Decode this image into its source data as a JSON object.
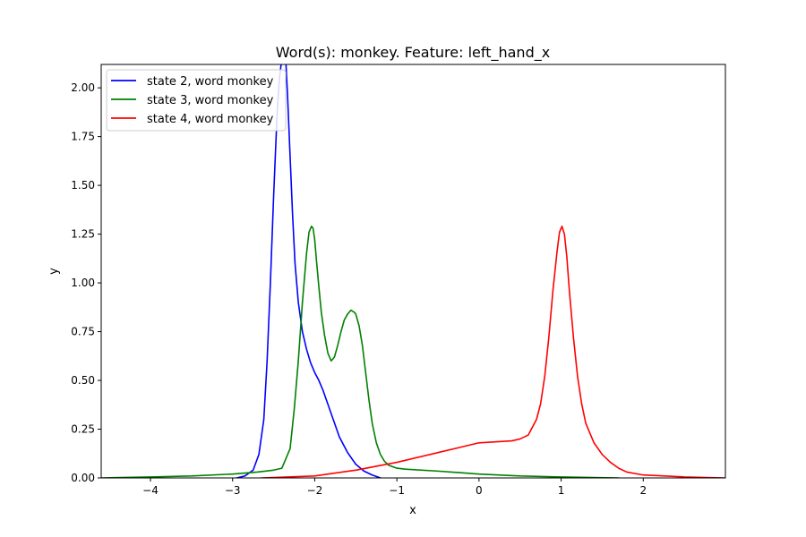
{
  "chart_data": {
    "type": "line",
    "title": "Word(s): monkey. Feature: left_hand_x",
    "xlabel": "x",
    "ylabel": "y",
    "xlim": [
      -4.6,
      3.0
    ],
    "ylim": [
      0,
      2.12
    ],
    "xticks": [
      -4,
      -3,
      -2,
      -1,
      0,
      1,
      2
    ],
    "xtick_labels": [
      "−4",
      "−3",
      "−2",
      "−1",
      "0",
      "1",
      "2"
    ],
    "yticks": [
      0,
      0.25,
      0.5,
      0.75,
      1.0,
      1.25,
      1.5,
      1.75,
      2.0
    ],
    "ytick_labels": [
      "0.00",
      "0.25",
      "0.50",
      "0.75",
      "1.00",
      "1.25",
      "1.50",
      "1.75",
      "2.00"
    ],
    "grid": false,
    "legend_position": "top-left",
    "series": [
      {
        "name": "state 2, word monkey",
        "color": "#0000ff",
        "x": [
          -2.95,
          -2.85,
          -2.75,
          -2.68,
          -2.62,
          -2.58,
          -2.54,
          -2.5,
          -2.46,
          -2.43,
          -2.4,
          -2.38,
          -2.35,
          -2.33,
          -2.3,
          -2.27,
          -2.24,
          -2.2,
          -2.15,
          -2.1,
          -2.05,
          -2.0,
          -1.95,
          -1.9,
          -1.85,
          -1.8,
          -1.75,
          -1.7,
          -1.6,
          -1.5,
          -1.4,
          -1.3,
          -1.2
        ],
        "y": [
          0.0,
          0.01,
          0.04,
          0.12,
          0.3,
          0.6,
          1.0,
          1.45,
          1.85,
          2.05,
          2.15,
          2.15,
          2.12,
          1.95,
          1.65,
          1.35,
          1.1,
          0.9,
          0.75,
          0.66,
          0.59,
          0.54,
          0.5,
          0.45,
          0.39,
          0.33,
          0.27,
          0.21,
          0.13,
          0.07,
          0.035,
          0.015,
          0.0
        ]
      },
      {
        "name": "state 3, word monkey",
        "color": "#008000",
        "x": [
          -4.6,
          -4.0,
          -3.5,
          -3.0,
          -2.7,
          -2.5,
          -2.4,
          -2.3,
          -2.25,
          -2.2,
          -2.15,
          -2.1,
          -2.07,
          -2.04,
          -2.02,
          -2.0,
          -1.98,
          -1.95,
          -1.92,
          -1.88,
          -1.84,
          -1.8,
          -1.76,
          -1.72,
          -1.68,
          -1.64,
          -1.6,
          -1.56,
          -1.52,
          -1.5,
          -1.46,
          -1.42,
          -1.38,
          -1.34,
          -1.3,
          -1.25,
          -1.2,
          -1.15,
          -1.1,
          -1.0,
          -0.9,
          -0.5,
          0.0,
          0.5,
          1.0,
          1.7
        ],
        "y": [
          0.0,
          0.005,
          0.01,
          0.02,
          0.03,
          0.04,
          0.05,
          0.15,
          0.35,
          0.6,
          0.9,
          1.15,
          1.26,
          1.29,
          1.28,
          1.22,
          1.12,
          0.98,
          0.85,
          0.73,
          0.64,
          0.6,
          0.62,
          0.68,
          0.75,
          0.81,
          0.84,
          0.86,
          0.85,
          0.84,
          0.78,
          0.68,
          0.54,
          0.4,
          0.28,
          0.18,
          0.12,
          0.085,
          0.065,
          0.05,
          0.045,
          0.035,
          0.02,
          0.01,
          0.005,
          0.0
        ]
      },
      {
        "name": "state 4, word monkey",
        "color": "#ff0000",
        "x": [
          -2.65,
          -2.0,
          -1.5,
          -1.0,
          -0.5,
          -0.2,
          0.0,
          0.2,
          0.4,
          0.5,
          0.6,
          0.7,
          0.75,
          0.8,
          0.85,
          0.9,
          0.95,
          0.98,
          1.01,
          1.04,
          1.07,
          1.1,
          1.15,
          1.2,
          1.25,
          1.3,
          1.4,
          1.5,
          1.6,
          1.7,
          1.8,
          2.0,
          2.5,
          3.0
        ],
        "y": [
          0.0,
          0.01,
          0.04,
          0.08,
          0.13,
          0.16,
          0.18,
          0.185,
          0.19,
          0.2,
          0.22,
          0.3,
          0.38,
          0.52,
          0.72,
          0.96,
          1.16,
          1.26,
          1.29,
          1.25,
          1.13,
          0.96,
          0.72,
          0.52,
          0.38,
          0.28,
          0.18,
          0.12,
          0.08,
          0.05,
          0.03,
          0.015,
          0.005,
          0.0
        ]
      }
    ]
  }
}
